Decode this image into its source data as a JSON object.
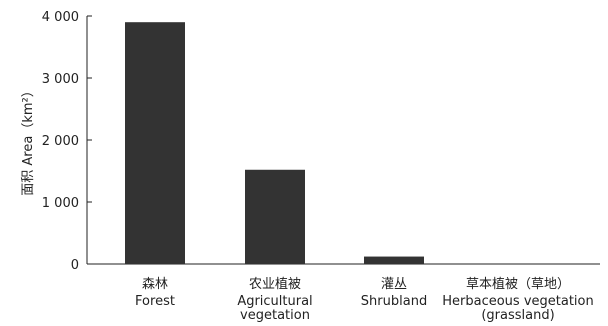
{
  "chart_data": {
    "type": "bar",
    "ylabel": "面积 Area（km²）",
    "ylim": [
      0,
      4000
    ],
    "yticks": [
      0,
      1000,
      2000,
      3000,
      4000
    ],
    "ytick_labels": [
      "0",
      "1 000",
      "2 000",
      "3 000",
      "4 000"
    ],
    "categories": [
      {
        "zh": "森林",
        "en": [
          "Forest"
        ]
      },
      {
        "zh": "农业植被",
        "en": [
          "Agricultural",
          "vegetation"
        ]
      },
      {
        "zh": "灌丛",
        "en": [
          "Shrubland"
        ]
      },
      {
        "zh": "草本植被（草地）",
        "en": [
          "Herbaceous vegetation",
          "(grassland)"
        ]
      }
    ],
    "values": [
      3900,
      1520,
      120,
      0
    ],
    "colors": {
      "bar": "#333333",
      "axis": "#222222"
    }
  }
}
